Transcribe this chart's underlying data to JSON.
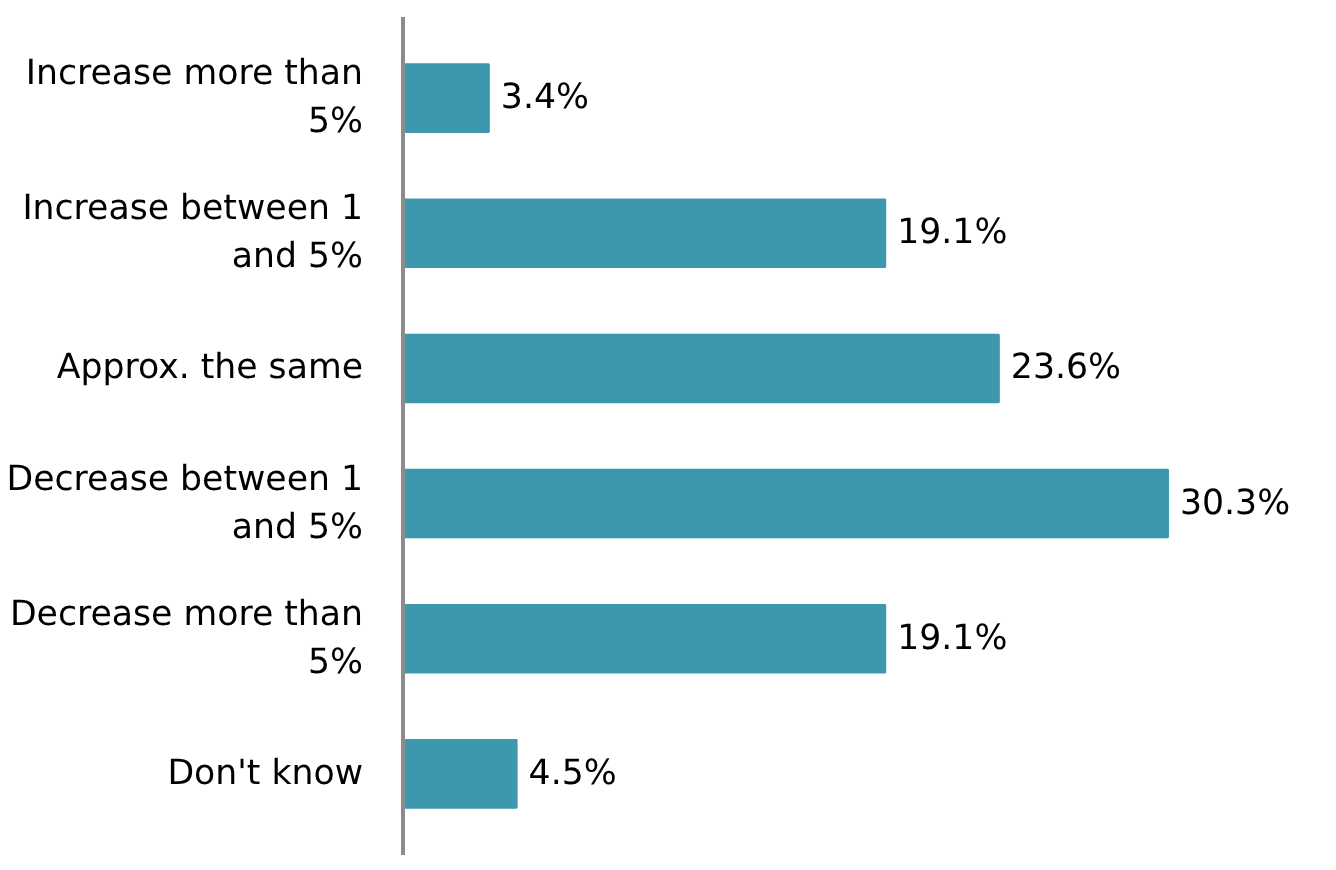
{
  "chart_data": {
    "type": "bar",
    "orientation": "horizontal",
    "categories": [
      "Increase more than 5%",
      "Increase between 1 and 5%",
      "Approx. the same",
      "Decrease between 1 and 5%",
      "Decrease more than 5%",
      "Don't know"
    ],
    "values": [
      3.4,
      19.1,
      23.6,
      30.3,
      19.1,
      4.5
    ],
    "value_labels": [
      "3.4%",
      "19.1%",
      "23.6%",
      "30.3%",
      "19.1%",
      "4.5%"
    ],
    "color": "#3d97ad",
    "grid": false
  }
}
